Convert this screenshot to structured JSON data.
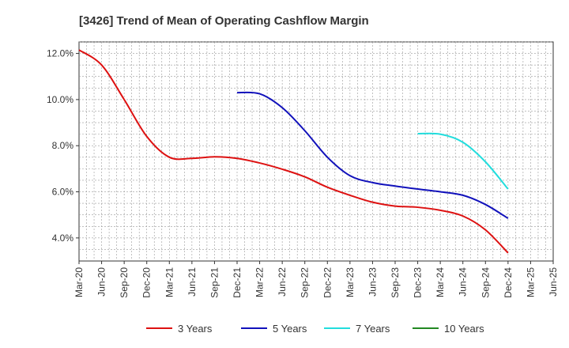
{
  "chart_data": {
    "type": "line",
    "title": "[3426]  Trend of Mean of Operating Cashflow Margin",
    "xlabel": "",
    "ylabel": "",
    "ylim": [
      3.0,
      12.5
    ],
    "y_ticks": [
      4.0,
      6.0,
      8.0,
      10.0,
      12.0
    ],
    "y_tick_labels": [
      "4.0%",
      "6.0%",
      "8.0%",
      "10.0%",
      "12.0%"
    ],
    "x_tick_labels": [
      "Mar-20",
      "Jun-20",
      "Sep-20",
      "Dec-20",
      "Mar-21",
      "Jun-21",
      "Sep-21",
      "Dec-21",
      "Mar-22",
      "Jun-22",
      "Sep-22",
      "Dec-22",
      "Mar-23",
      "Jun-23",
      "Sep-23",
      "Dec-23",
      "Mar-24",
      "Jun-24",
      "Sep-24",
      "Dec-24",
      "Mar-25",
      "Jun-25"
    ],
    "grid": true,
    "legend_position": "bottom",
    "series": [
      {
        "name": "3 Years",
        "color": "#dd1111",
        "x_index": [
          0,
          1,
          2,
          3,
          4,
          5,
          6,
          7,
          8,
          9,
          10,
          11,
          12,
          13,
          14,
          15,
          16,
          17,
          18,
          19
        ],
        "values": [
          12.15,
          11.5,
          10.0,
          8.4,
          7.5,
          7.45,
          7.52,
          7.45,
          7.25,
          6.98,
          6.65,
          6.2,
          5.85,
          5.55,
          5.38,
          5.33,
          5.2,
          4.95,
          4.35,
          3.35
        ]
      },
      {
        "name": "5 Years",
        "color": "#1111bb",
        "x_index": [
          7,
          8,
          9,
          10,
          11,
          12,
          13,
          14,
          15,
          16,
          17,
          18,
          19
        ],
        "values": [
          10.3,
          10.25,
          9.65,
          8.65,
          7.5,
          6.7,
          6.4,
          6.25,
          6.12,
          6.0,
          5.85,
          5.45,
          4.85
        ]
      },
      {
        "name": "7 Years",
        "color": "#22dddd",
        "x_index": [
          15,
          16,
          17,
          18,
          19
        ],
        "values": [
          8.52,
          8.5,
          8.15,
          7.3,
          6.12
        ]
      },
      {
        "name": "10 Years",
        "color": "#228822",
        "x_index": [],
        "values": []
      }
    ]
  }
}
